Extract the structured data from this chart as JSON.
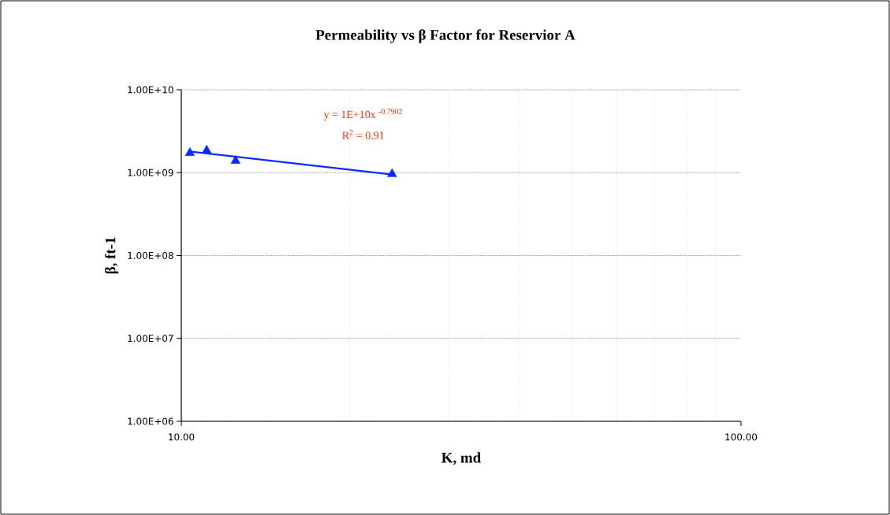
{
  "chart_data": {
    "type": "scatter",
    "title": "Permeability vs β Factor for Reservior A",
    "xlabel": "K, md",
    "ylabel": "β, ft-1",
    "annotations": [
      "y = 1E+10x $^{-0.7902}$",
      "R$^{2}$ = 0.91"
    ],
    "log": "xy",
    "xlim": [
      10,
      100
    ],
    "ylim": [
      1000000,
      10000000000
    ],
    "xticks": [
      {
        "value": 10,
        "label": "10.00"
      },
      {
        "value": 100,
        "label": "100.00"
      }
    ],
    "yticks": [
      {
        "value": 1000000,
        "label": "1.00E+06"
      },
      {
        "value": 10000000,
        "label": "1.00E+07"
      },
      {
        "value": 100000000,
        "label": "1.00E+08"
      },
      {
        "value": 1000000000,
        "label": "1.00E+09"
      },
      {
        "value": 10000000000,
        "label": "1.00E+10"
      }
    ],
    "grid": true,
    "marker": "triangle",
    "x": [
      10.36,
      11.1,
      12.5,
      23.8
    ],
    "series": [
      {
        "color": "#0a2bff",
        "values": [
          1730000000,
          1850000000,
          1390000000,
          960000000
        ]
      },
      {
        "type": "line",
        "marker": "none",
        "color": "#0a2bff",
        "x": [
          10.36,
          23.8
        ],
        "values": [
          1800000000,
          950000000
        ]
      }
    ]
  }
}
